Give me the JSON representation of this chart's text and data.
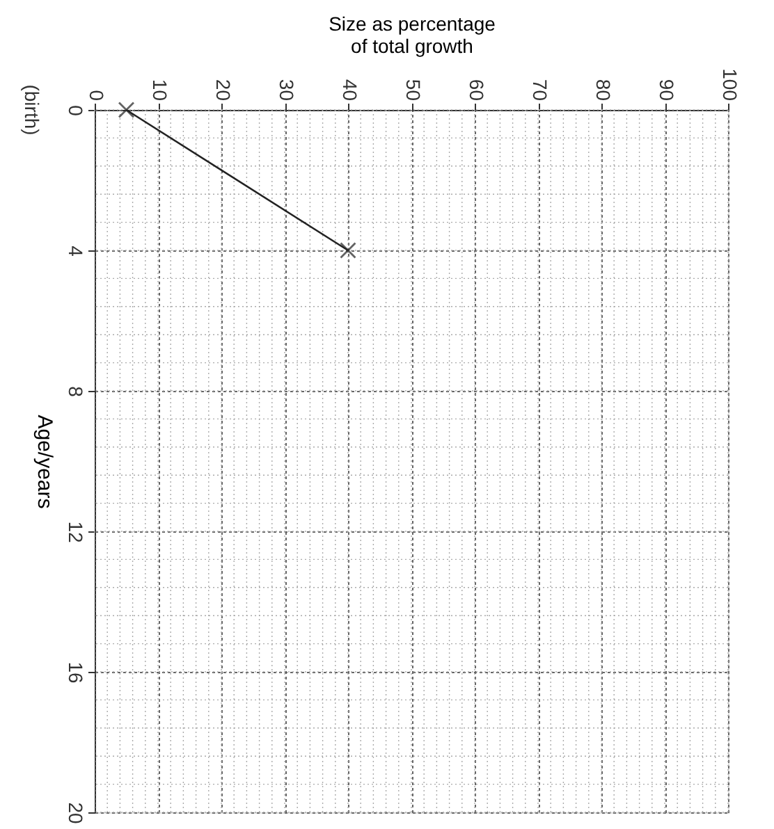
{
  "chart_data": {
    "type": "line",
    "xlabel": "Size as percentage of total growth",
    "ylabel": "Age/years",
    "x": [
      5,
      40
    ],
    "series": [
      {
        "color": "#222222",
        "values": [
          0,
          4
        ]
      }
    ],
    "xlim": [
      0,
      100
    ],
    "xticks": [
      0,
      10,
      20,
      30,
      40,
      50,
      60,
      70,
      80,
      90,
      100
    ],
    "ylim": [
      20,
      0
    ],
    "yticks": [
      0,
      4,
      8,
      12,
      16,
      20
    ],
    "annotations": [
      "(birth)"
    ],
    "grid": true,
    "marker": "cross",
    "line_style": "solid"
  }
}
